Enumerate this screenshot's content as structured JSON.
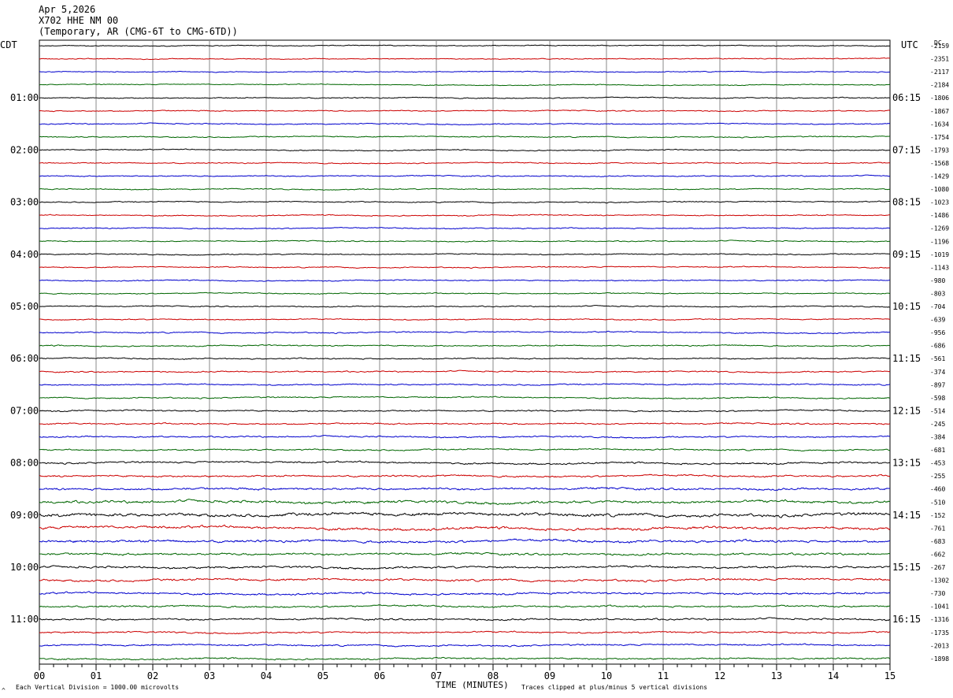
{
  "header": {
    "date": "Apr 5,2026",
    "station": "X702 HHE NM 00",
    "description": "(Temporary, AR (CMG-6T to CMG-6TD))"
  },
  "left_tz": "CDT",
  "right_tz": "UTC",
  "dc_label": "DC",
  "footer": {
    "scale_note": "Each Vertical Division = 1000.00 microvolts",
    "xlabel": "TIME (MINUTES)",
    "clip_note": "Traces clipped at plus/minus 5 vertical divisions",
    "corner_mark": "^"
  },
  "colors": {
    "trace_cycle": [
      "#000000",
      "#cc0000",
      "#0000cc",
      "#006600"
    ],
    "grid": "#888888"
  },
  "chart_data": {
    "type": "line",
    "title": "",
    "xlabel": "TIME (MINUTES)",
    "x_ticks": [
      "00",
      "01",
      "02",
      "03",
      "04",
      "05",
      "06",
      "07",
      "08",
      "09",
      "10",
      "11",
      "12",
      "13",
      "14",
      "15"
    ],
    "xlim": [
      0,
      15
    ],
    "trace_count": 48,
    "left_hour_labels": [
      "01:00",
      "02:00",
      "03:00",
      "04:00",
      "05:00",
      "06:00",
      "07:00",
      "08:00",
      "09:00",
      "10:00",
      "11:00"
    ],
    "right_hour_labels": [
      "06:15",
      "07:15",
      "08:15",
      "09:15",
      "10:15",
      "11:15",
      "12:15",
      "13:15",
      "14:15",
      "15:15",
      "16:15"
    ],
    "dc_offsets": [
      "-2159",
      "-2351",
      "-2117",
      "-2184",
      "-1806",
      "-1867",
      "-1634",
      "-1754",
      "-1793",
      "-1568",
      "-1429",
      "-1080",
      "-1023",
      "-1486",
      "-1269",
      "-1196",
      "-1019",
      "-1143",
      "-980",
      "-803",
      "-704",
      "-639",
      "-956",
      "-686",
      "-561",
      "-374",
      "-897",
      "-598",
      "-514",
      "-245",
      "-384",
      "-681",
      "-453",
      "-255",
      "-460",
      "-510",
      "-152",
      "-761",
      "-683",
      "-662",
      "-267",
      "-1302",
      "-730",
      "-1041",
      "-1316",
      "-1735",
      "-2013",
      "-1898"
    ],
    "activity": [
      0.5,
      0.5,
      0.5,
      0.5,
      0.6,
      0.6,
      0.6,
      0.6,
      0.6,
      0.6,
      0.6,
      0.6,
      0.6,
      0.6,
      0.6,
      0.6,
      0.6,
      0.6,
      0.6,
      0.6,
      0.6,
      0.6,
      0.7,
      0.7,
      0.7,
      0.7,
      0.7,
      0.7,
      0.8,
      0.8,
      0.8,
      0.8,
      1.0,
      1.0,
      1.2,
      1.5,
      1.7,
      1.5,
      1.4,
      1.2,
      1.2,
      1.2,
      1.1,
      1.0,
      1.0,
      0.9,
      0.9,
      0.9
    ]
  }
}
